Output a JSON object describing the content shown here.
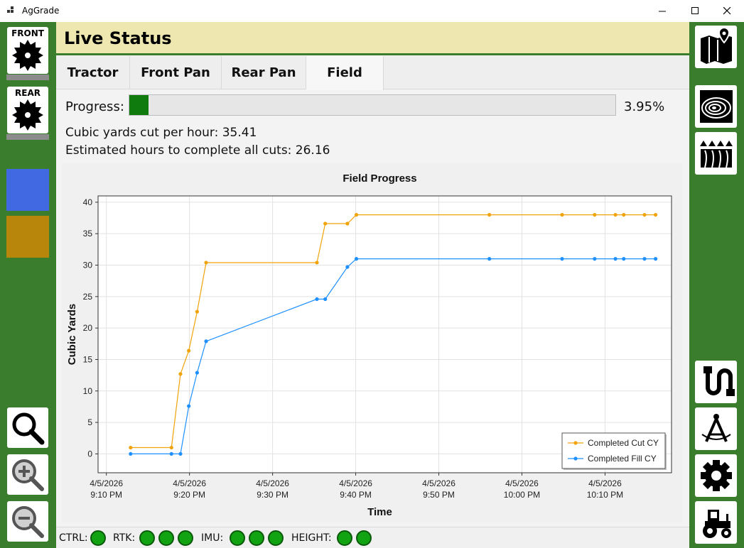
{
  "window": {
    "title": "AgGrade"
  },
  "header": {
    "title": "Live Status"
  },
  "left_rail": {
    "front_pan_label": "FRONT",
    "rear_pan_label": "REAR",
    "swatch_colors": [
      "#4169e1",
      "#b8860b"
    ]
  },
  "right_rail": {
    "icons": [
      "map-icon",
      "topography-icon",
      "field-rows-icon",
      "cable-icon",
      "compass-icon",
      "gear-icon",
      "tractor-icon"
    ]
  },
  "tabs": [
    {
      "label": "Tractor",
      "active": false
    },
    {
      "label": "Front Pan",
      "active": false
    },
    {
      "label": "Rear Pan",
      "active": false
    },
    {
      "label": "Field",
      "active": true
    }
  ],
  "progress": {
    "label": "Progress:",
    "value": 0.0395,
    "text": "3.95%"
  },
  "stats": {
    "cy_per_hour": "Cubic yards cut per hour: 35.41",
    "est_hours": "Estimated hours to complete all cuts: 26.16"
  },
  "chart_data": {
    "type": "line",
    "title": "Field Progress",
    "xlabel": "Time",
    "ylabel": "Cubic Yards",
    "ylim": [
      -3,
      41
    ],
    "yticks": [
      0,
      5,
      10,
      15,
      20,
      25,
      30,
      35,
      40
    ],
    "xlim": [
      "4/5/2026 9:09 PM",
      "4/5/2026 10:18 PM"
    ],
    "xticks": [
      {
        "date": "4/5/2026",
        "time": "9:10 PM"
      },
      {
        "date": "4/5/2026",
        "time": "9:20 PM"
      },
      {
        "date": "4/5/2026",
        "time": "9:30 PM"
      },
      {
        "date": "4/5/2026",
        "time": "9:40 PM"
      },
      {
        "date": "4/5/2026",
        "time": "9:50 PM"
      },
      {
        "date": "4/5/2026",
        "time": "10:00 PM"
      },
      {
        "date": "4/5/2026",
        "time": "10:10 PM"
      }
    ],
    "grid": true,
    "legend_position": "bottom-right",
    "series": [
      {
        "name": "Completed Cut CY",
        "color": "#f0a30a",
        "x": [
          "9:12:55 PM",
          "9:17:50 PM",
          "9:18:55 PM",
          "9:19:55 PM",
          "9:20:55 PM",
          "9:22:00 PM",
          "9:35:20 PM",
          "9:36:20 PM",
          "9:39:00 PM",
          "9:40:05 PM",
          "9:56:05 PM",
          "10:04:50 PM",
          "10:08:45 PM",
          "10:11:15 PM",
          "10:12:15 PM",
          "10:14:45 PM",
          "10:16:05 PM"
        ],
        "y": [
          1.0,
          1.0,
          12.7,
          16.4,
          22.6,
          30.4,
          30.4,
          36.6,
          36.6,
          38.0,
          38.0,
          38.0,
          38.0,
          38.0,
          38.0,
          38.0,
          38.0
        ]
      },
      {
        "name": "Completed Fill CY",
        "color": "#1e90ff",
        "x": [
          "9:12:55 PM",
          "9:17:50 PM",
          "9:18:55 PM",
          "9:19:55 PM",
          "9:20:55 PM",
          "9:22:00 PM",
          "9:35:20 PM",
          "9:36:20 PM",
          "9:39:00 PM",
          "9:40:05 PM",
          "9:56:05 PM",
          "10:04:50 PM",
          "10:08:45 PM",
          "10:11:15 PM",
          "10:12:15 PM",
          "10:14:45 PM",
          "10:16:05 PM"
        ],
        "y": [
          0.0,
          0.0,
          0.0,
          7.6,
          12.9,
          17.9,
          24.6,
          24.6,
          29.7,
          31.0,
          31.0,
          31.0,
          31.0,
          31.0,
          31.0,
          31.0,
          31.0
        ]
      }
    ]
  },
  "status": {
    "ctrl_label": "CTRL:",
    "rtk_label": "RTK:",
    "imu_label": "IMU:",
    "height_label": "HEIGHT:"
  }
}
